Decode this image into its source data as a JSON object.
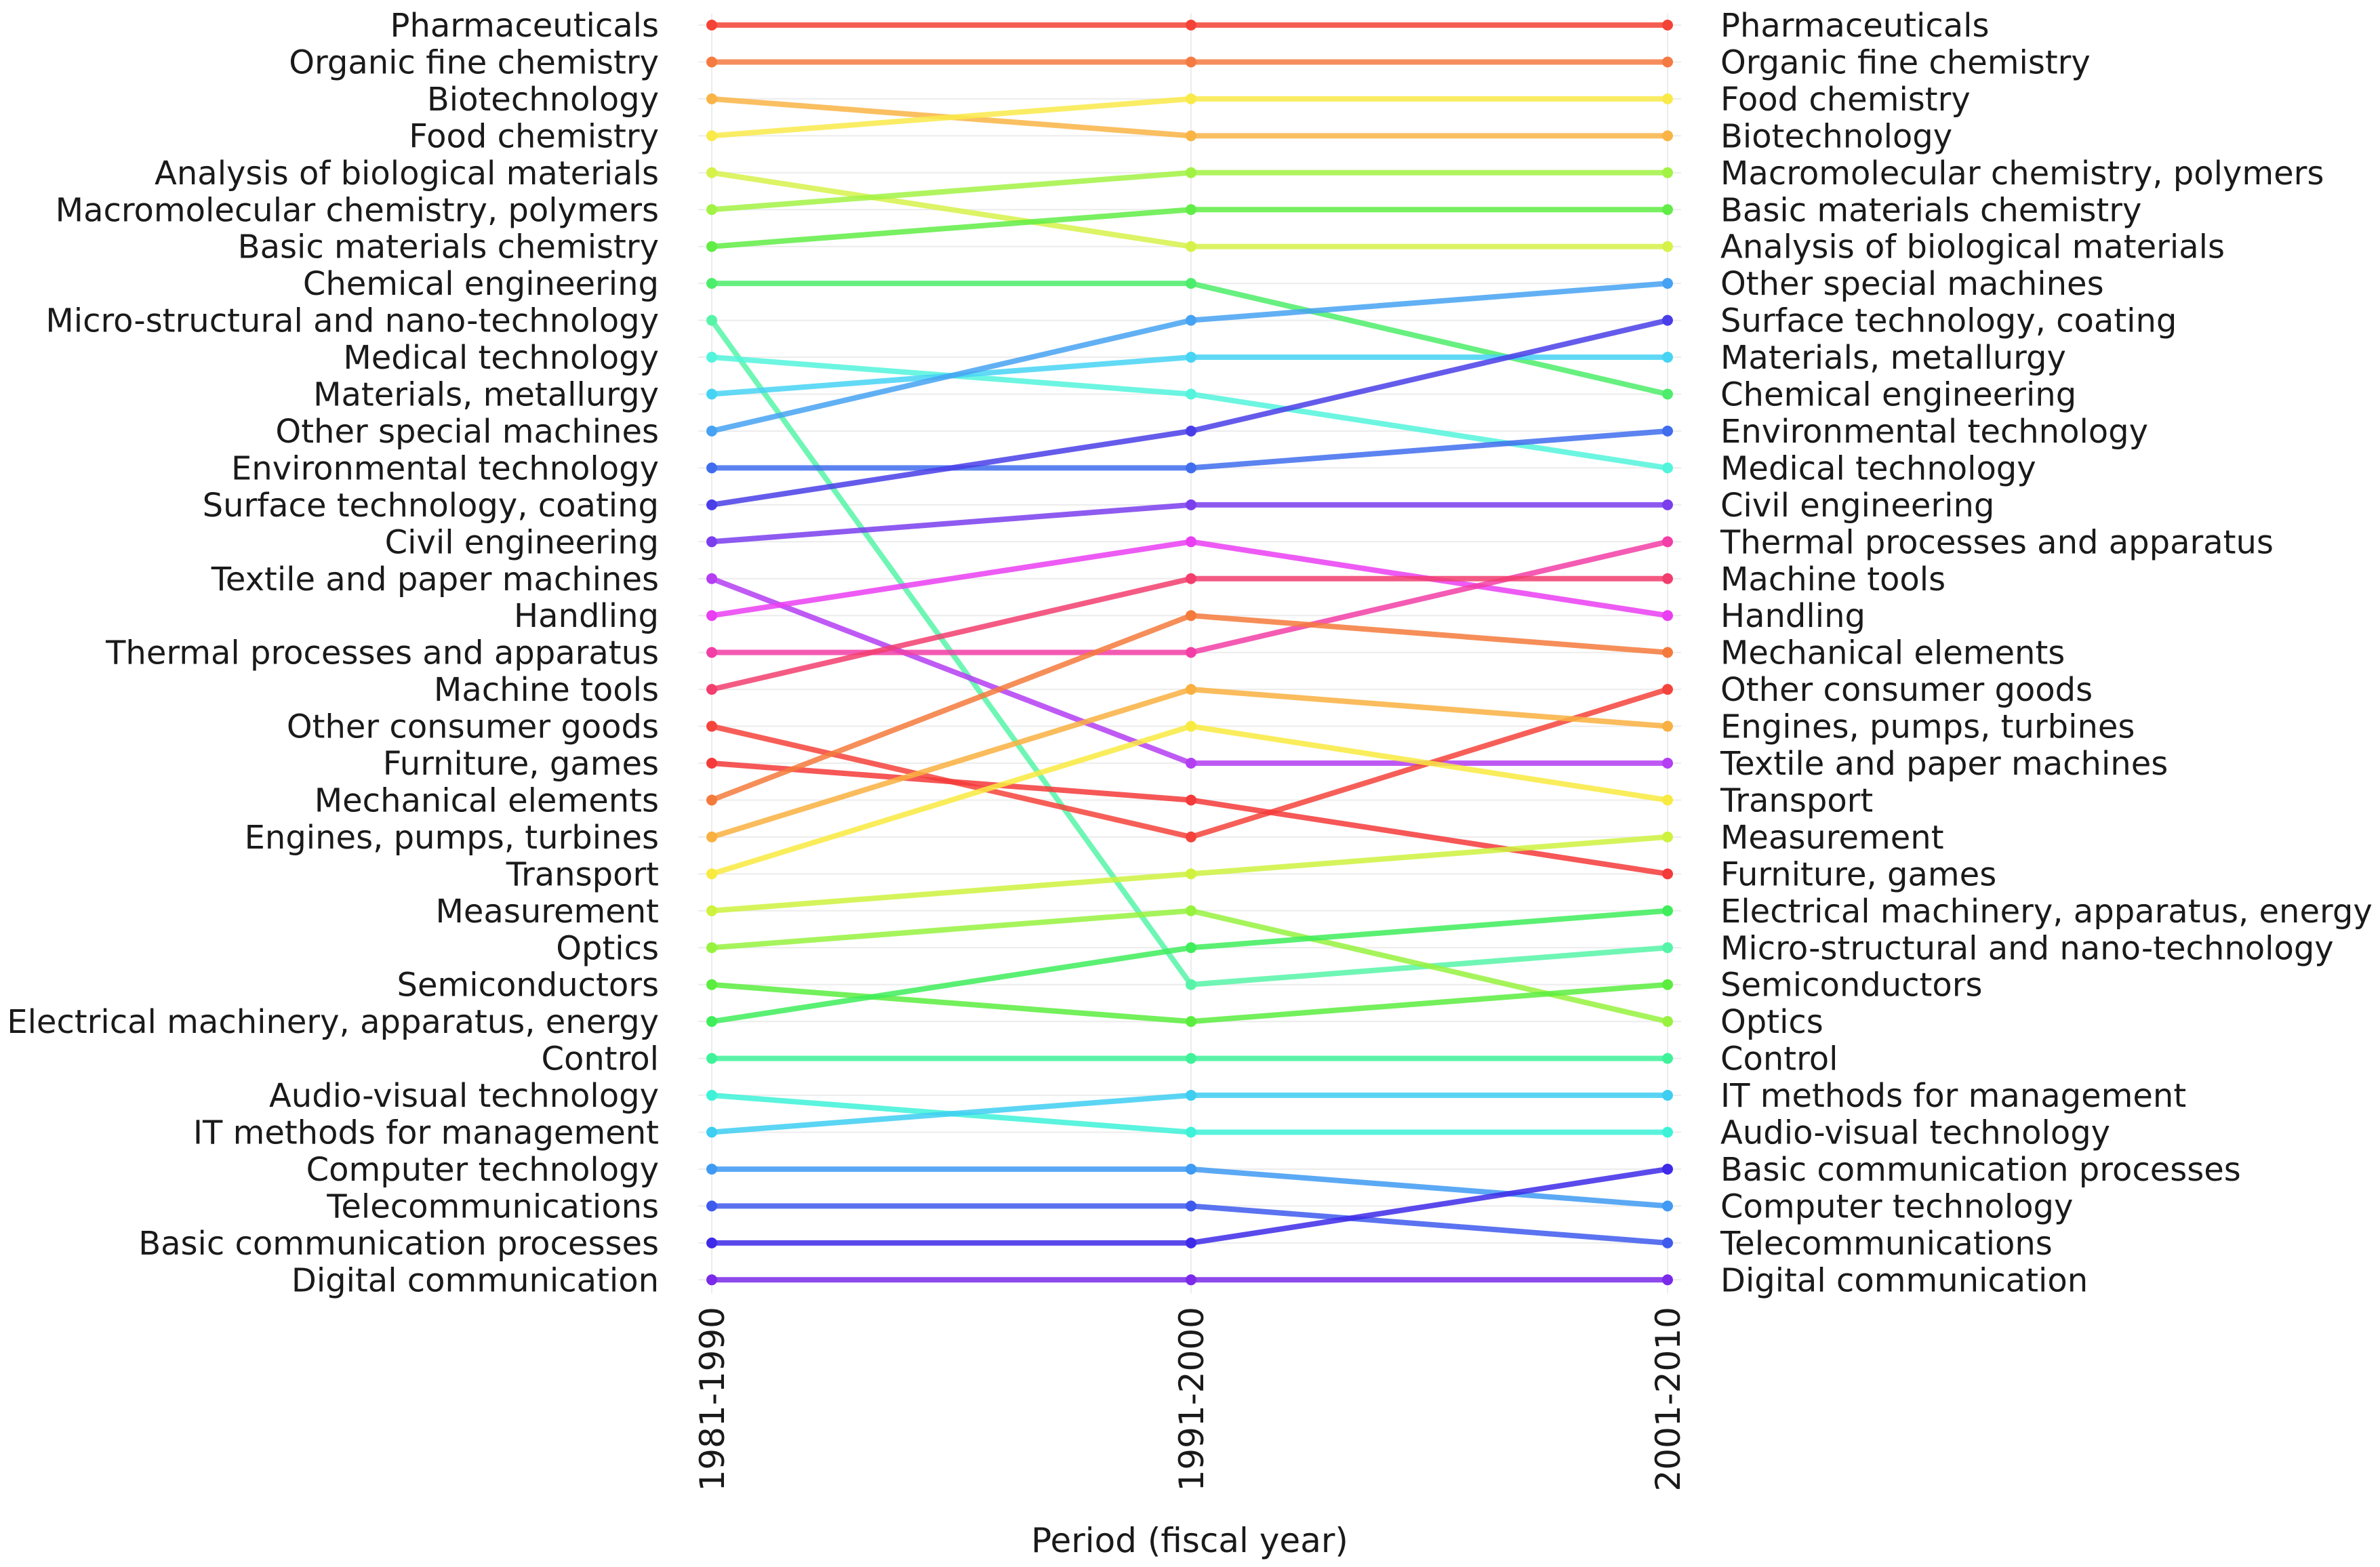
{
  "chart_data": {
    "type": "line",
    "subtype": "bump-chart-rank",
    "title": "",
    "xlabel": "Period (fiscal year)",
    "ylabel": "",
    "x": [
      "1981-1990",
      "1991-2000",
      "2001-2010"
    ],
    "y_axis": "rank (1 = top)",
    "ylim": [
      1,
      35
    ],
    "grid": true,
    "legend": "none (series labeled at left and right ends)",
    "left_labels": [
      "Pharmaceuticals",
      "Organic fine chemistry",
      "Biotechnology",
      "Food chemistry",
      "Analysis of biological materials",
      "Macromolecular chemistry, polymers",
      "Basic materials chemistry",
      "Chemical engineering",
      "Micro-structural and nano-technology",
      "Medical technology",
      "Materials, metallurgy",
      "Other special machines",
      "Environmental technology",
      "Surface technology, coating",
      "Civil engineering",
      "Textile and paper machines",
      "Handling",
      "Thermal processes and apparatus",
      "Machine tools",
      "Other consumer goods",
      "Furniture, games",
      "Mechanical elements",
      "Engines, pumps, turbines",
      "Transport",
      "Measurement",
      "Optics",
      "Semiconductors",
      "Electrical machinery, apparatus, energy",
      "Control",
      "Audio-visual technology",
      "IT methods for management",
      "Computer technology",
      "Telecommunications",
      "Basic communication processes",
      "Digital communication"
    ],
    "right_labels": [
      "Pharmaceuticals",
      "Organic fine chemistry",
      "Food chemistry",
      "Biotechnology",
      "Macromolecular chemistry, polymers",
      "Basic materials chemistry",
      "Analysis of biological materials",
      "Other special machines",
      "Surface technology, coating",
      "Materials, metallurgy",
      "Chemical engineering",
      "Environmental technology",
      "Medical technology",
      "Civil engineering",
      "Thermal processes and apparatus",
      "Machine tools",
      "Handling",
      "Mechanical elements",
      "Other consumer goods",
      "Engines, pumps, turbines",
      "Textile and paper machines",
      "Transport",
      "Measurement",
      "Furniture, games",
      "Electrical machinery, apparatus, energy",
      "Micro-structural and nano-technology",
      "Semiconductors",
      "Optics",
      "Control",
      "IT methods for management",
      "Audio-visual technology",
      "Basic communication processes",
      "Computer technology",
      "Telecommunications",
      "Digital communication"
    ],
    "series": [
      {
        "name": "Pharmaceuticals",
        "values": [
          1,
          1,
          1
        ],
        "color": "#f44336"
      },
      {
        "name": "Organic fine chemistry",
        "values": [
          2,
          2,
          2
        ],
        "color": "#f47a42"
      },
      {
        "name": "Biotechnology",
        "values": [
          3,
          4,
          4
        ],
        "color": "#f9b445"
      },
      {
        "name": "Food chemistry",
        "values": [
          4,
          3,
          3
        ],
        "color": "#f9ea4a"
      },
      {
        "name": "Analysis of biological materials",
        "values": [
          5,
          7,
          7
        ],
        "color": "#d6f24a"
      },
      {
        "name": "Macromolecular chemistry, polymers",
        "values": [
          6,
          5,
          5
        ],
        "color": "#a2f244"
      },
      {
        "name": "Basic materials chemistry",
        "values": [
          7,
          6,
          6
        ],
        "color": "#60ed45"
      },
      {
        "name": "Chemical engineering",
        "values": [
          8,
          8,
          11
        ],
        "color": "#4ced6a"
      },
      {
        "name": "Micro-structural and nano-technology",
        "values": [
          9,
          27,
          26
        ],
        "color": "#56f4a8"
      },
      {
        "name": "Medical technology",
        "values": [
          10,
          11,
          13
        ],
        "color": "#52f4dc"
      },
      {
        "name": "Materials, metallurgy",
        "values": [
          11,
          10,
          10
        ],
        "color": "#46d4f4"
      },
      {
        "name": "Other special machines",
        "values": [
          12,
          9,
          8
        ],
        "color": "#46a2f2"
      },
      {
        "name": "Environmental technology",
        "values": [
          13,
          13,
          12
        ],
        "color": "#3f6ded"
      },
      {
        "name": "Surface technology, coating",
        "values": [
          14,
          12,
          9
        ],
        "color": "#4a3ee8"
      },
      {
        "name": "Civil engineering",
        "values": [
          15,
          14,
          14
        ],
        "color": "#7a3eed"
      },
      {
        "name": "Textile and paper machines",
        "values": [
          16,
          21,
          21
        ],
        "color": "#b43ef2"
      },
      {
        "name": "Handling",
        "values": [
          17,
          15,
          17
        ],
        "color": "#ea3ef2"
      },
      {
        "name": "Thermal processes and apparatus",
        "values": [
          18,
          18,
          15
        ],
        "color": "#f23ea6"
      },
      {
        "name": "Machine tools",
        "values": [
          19,
          16,
          16
        ],
        "color": "#f23e6e"
      },
      {
        "name": "Other consumer goods",
        "values": [
          20,
          23,
          19
        ],
        "color": "#f4433b"
      },
      {
        "name": "Furniture, games",
        "values": [
          21,
          22,
          24
        ],
        "color": "#f43a3a"
      },
      {
        "name": "Mechanical elements",
        "values": [
          22,
          17,
          18
        ],
        "color": "#f47a3c"
      },
      {
        "name": "Engines, pumps, turbines",
        "values": [
          23,
          19,
          20
        ],
        "color": "#f9b040"
      },
      {
        "name": "Transport",
        "values": [
          24,
          20,
          22
        ],
        "color": "#f9ea40"
      },
      {
        "name": "Measurement",
        "values": [
          25,
          24,
          23
        ],
        "color": "#cef23e"
      },
      {
        "name": "Optics",
        "values": [
          26,
          25,
          28
        ],
        "color": "#97f23e"
      },
      {
        "name": "Semiconductors",
        "values": [
          27,
          28,
          27
        ],
        "color": "#5aed3e"
      },
      {
        "name": "Electrical machinery, apparatus, energy",
        "values": [
          28,
          26,
          25
        ],
        "color": "#3eed5a"
      },
      {
        "name": "Control",
        "values": [
          29,
          29,
          29
        ],
        "color": "#3ef29a"
      },
      {
        "name": "Audio-visual technology",
        "values": [
          30,
          31,
          31
        ],
        "color": "#3ef2d8"
      },
      {
        "name": "IT methods for management",
        "values": [
          31,
          30,
          30
        ],
        "color": "#3ecef2"
      },
      {
        "name": "Computer technology",
        "values": [
          32,
          32,
          33
        ],
        "color": "#3e9af2"
      },
      {
        "name": "Telecommunications",
        "values": [
          33,
          33,
          34
        ],
        "color": "#3e5aed"
      },
      {
        "name": "Basic communication processes",
        "values": [
          34,
          34,
          32
        ],
        "color": "#3e2ae8"
      },
      {
        "name": "Digital communication",
        "values": [
          35,
          35,
          35
        ],
        "color": "#7a2ae8"
      }
    ]
  }
}
